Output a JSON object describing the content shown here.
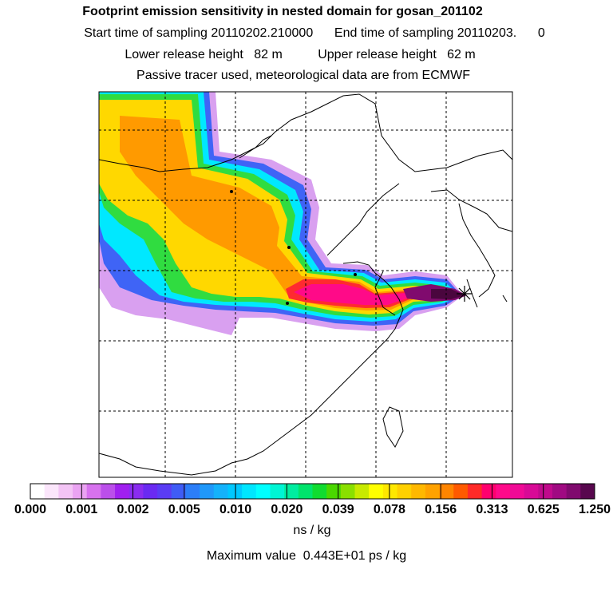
{
  "header": {
    "title": "Footprint emission sensitivity in nested domain for gosan_201102",
    "sampling_line": "Start time of sampling 20110202.210000      End time of sampling 20110203.      0",
    "height_line": "Lower release height   82 m          Upper release height   62 m",
    "tracer_line": "Passive tracer used, meteorological data are from ECMWF"
  },
  "colorbar": {
    "tick_labels": [
      "0.000",
      "0.001",
      "0.002",
      "0.005",
      "0.010",
      "0.020",
      "0.039",
      "0.078",
      "0.156",
      "0.313",
      "0.625",
      "1.250"
    ],
    "colors": [
      "#ffffff",
      "#fbe6fb",
      "#f3c4f5",
      "#eaa3f2",
      "#d772ee",
      "#bb4fea",
      "#a020ef",
      "#8a2cf0",
      "#6a2af2",
      "#5a3cf4",
      "#3f5cf6",
      "#2c7ef8",
      "#1f98fa",
      "#14b2fb",
      "#00c8ff",
      "#00e6ff",
      "#00ffff",
      "#00f5d4",
      "#00eda0",
      "#00e46c",
      "#10dc30",
      "#4ad800",
      "#8ae000",
      "#c8ea00",
      "#ffff00",
      "#ffe800",
      "#ffd000",
      "#ffb800",
      "#ffa200",
      "#ff8500",
      "#ff5a00",
      "#ff2a28",
      "#ff006e",
      "#ff0a8a",
      "#f00a96",
      "#d80a96",
      "#c00a8c",
      "#a00a82",
      "#800a6e",
      "#58084e"
    ],
    "units": "ns / kg"
  },
  "footer": {
    "max_value": "Maximum value  0.443E+01 ps / kg"
  },
  "map": {
    "receptor": "gosan",
    "receptor_marker": "star",
    "grid": true
  }
}
